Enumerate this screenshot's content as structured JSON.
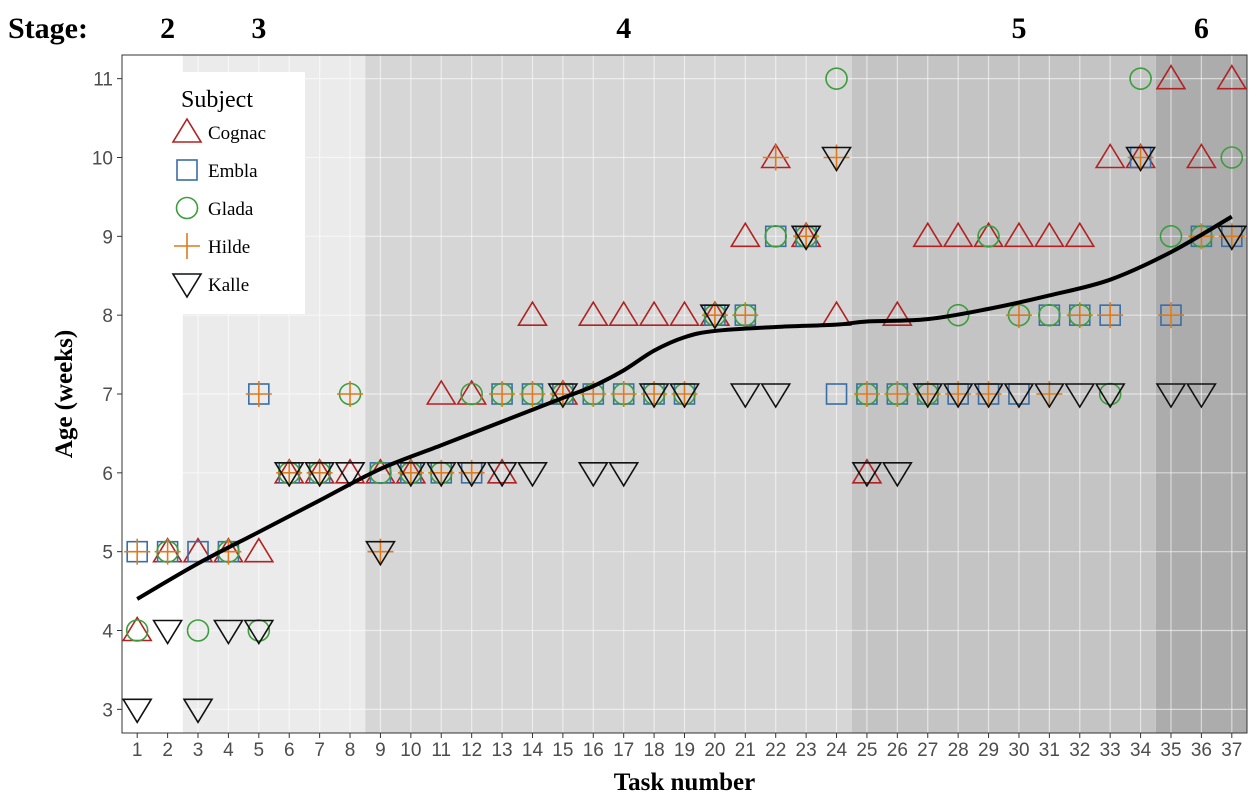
{
  "chart_data": {
    "type": "scatter",
    "title": "",
    "stage_label": "Stage:",
    "stages": [
      {
        "label": "2",
        "x_start": 0.5,
        "x_end": 2.5,
        "fill": "#ffffff"
      },
      {
        "label": "3",
        "x_start": 2.5,
        "x_end": 8.5,
        "fill": "#ebebeb"
      },
      {
        "label": "4",
        "x_start": 8.5,
        "x_end": 24.5,
        "fill": "#d6d6d6"
      },
      {
        "label": "5",
        "x_start": 24.5,
        "x_end": 34.5,
        "fill": "#c4c4c4"
      },
      {
        "label": "6",
        "x_start": 34.5,
        "x_end": 37.5,
        "fill": "#acacac"
      }
    ],
    "stage_label_x": [
      2,
      5,
      17,
      30,
      36
    ],
    "xlabel": "Task number",
    "ylabel": "Age (weeks)",
    "xlim": [
      0.5,
      37.5
    ],
    "ylim": [
      2.7,
      11.3
    ],
    "x_ticks": [
      1,
      2,
      3,
      4,
      5,
      6,
      7,
      8,
      9,
      10,
      11,
      12,
      13,
      14,
      15,
      16,
      17,
      18,
      19,
      20,
      21,
      22,
      23,
      24,
      25,
      26,
      27,
      28,
      29,
      30,
      31,
      32,
      33,
      34,
      35,
      36,
      37
    ],
    "y_ticks": [
      3,
      4,
      5,
      6,
      7,
      8,
      9,
      10,
      11
    ],
    "grid": true,
    "legend": {
      "title": "Subject",
      "position": "top-left"
    },
    "series": [
      {
        "name": "Cognac",
        "marker": "triangle-up",
        "color": "#b22222",
        "points": [
          [
            1,
            4
          ],
          [
            2,
            5
          ],
          [
            3,
            5
          ],
          [
            4,
            5
          ],
          [
            5,
            5
          ],
          [
            6,
            6
          ],
          [
            7,
            6
          ],
          [
            8,
            6
          ],
          [
            9,
            6
          ],
          [
            10,
            6
          ],
          [
            11,
            7
          ],
          [
            12,
            7
          ],
          [
            13,
            6
          ],
          [
            14,
            8
          ],
          [
            15,
            7
          ],
          [
            16,
            8
          ],
          [
            17,
            8
          ],
          [
            18,
            8
          ],
          [
            19,
            8
          ],
          [
            20,
            8
          ],
          [
            21,
            9
          ],
          [
            22,
            10
          ],
          [
            23,
            9
          ],
          [
            24,
            8
          ],
          [
            25,
            6
          ],
          [
            26,
            8
          ],
          [
            27,
            9
          ],
          [
            28,
            9
          ],
          [
            29,
            9
          ],
          [
            30,
            9
          ],
          [
            31,
            9
          ],
          [
            32,
            9
          ],
          [
            33,
            10
          ],
          [
            34,
            10
          ],
          [
            35,
            11
          ],
          [
            36,
            10
          ],
          [
            37,
            11
          ]
        ]
      },
      {
        "name": "Embla",
        "marker": "square",
        "color": "#3a6ea5",
        "points": [
          [
            1,
            5
          ],
          [
            2,
            5
          ],
          [
            3,
            5
          ],
          [
            4,
            5
          ],
          [
            5,
            7
          ],
          [
            6,
            6
          ],
          [
            7,
            6
          ],
          [
            9,
            6
          ],
          [
            10,
            6
          ],
          [
            11,
            6
          ],
          [
            12,
            6
          ],
          [
            13,
            7
          ],
          [
            14,
            7
          ],
          [
            15,
            7
          ],
          [
            16,
            7
          ],
          [
            17,
            7
          ],
          [
            18,
            7
          ],
          [
            19,
            7
          ],
          [
            20,
            8
          ],
          [
            21,
            8
          ],
          [
            22,
            9
          ],
          [
            23,
            9
          ],
          [
            24,
            7
          ],
          [
            25,
            7
          ],
          [
            26,
            7
          ],
          [
            27,
            7
          ],
          [
            28,
            7
          ],
          [
            29,
            7
          ],
          [
            30,
            7
          ],
          [
            31,
            8
          ],
          [
            32,
            8
          ],
          [
            33,
            8
          ],
          [
            34,
            10
          ],
          [
            35,
            8
          ],
          [
            36,
            9
          ],
          [
            37,
            9
          ]
        ]
      },
      {
        "name": "Glada",
        "marker": "circle",
        "color": "#3c9d3c",
        "points": [
          [
            1,
            4
          ],
          [
            2,
            5
          ],
          [
            3,
            4
          ],
          [
            4,
            5
          ],
          [
            5,
            4
          ],
          [
            6,
            6
          ],
          [
            7,
            6
          ],
          [
            8,
            7
          ],
          [
            9,
            6
          ],
          [
            10,
            6
          ],
          [
            11,
            6
          ],
          [
            12,
            7
          ],
          [
            13,
            7
          ],
          [
            14,
            7
          ],
          [
            15,
            7
          ],
          [
            16,
            7
          ],
          [
            17,
            7
          ],
          [
            18,
            7
          ],
          [
            19,
            7
          ],
          [
            20,
            8
          ],
          [
            21,
            8
          ],
          [
            22,
            9
          ],
          [
            23,
            9
          ],
          [
            24,
            11
          ],
          [
            25,
            7
          ],
          [
            26,
            7
          ],
          [
            27,
            7
          ],
          [
            28,
            8
          ],
          [
            29,
            9
          ],
          [
            30,
            8
          ],
          [
            31,
            8
          ],
          [
            32,
            8
          ],
          [
            33,
            7
          ],
          [
            34,
            11
          ],
          [
            35,
            9
          ],
          [
            36,
            9
          ],
          [
            37,
            10
          ]
        ]
      },
      {
        "name": "Hilde",
        "marker": "plus",
        "color": "#e07b1a",
        "points": [
          [
            1,
            5
          ],
          [
            2,
            5
          ],
          [
            4,
            5
          ],
          [
            5,
            7
          ],
          [
            6,
            6
          ],
          [
            7,
            6
          ],
          [
            8,
            7
          ],
          [
            9,
            5
          ],
          [
            10,
            6
          ],
          [
            11,
            6
          ],
          [
            12,
            6
          ],
          [
            13,
            7
          ],
          [
            14,
            7
          ],
          [
            15,
            7
          ],
          [
            16,
            7
          ],
          [
            17,
            7
          ],
          [
            18,
            7
          ],
          [
            19,
            7
          ],
          [
            20,
            8
          ],
          [
            21,
            8
          ],
          [
            22,
            10
          ],
          [
            23,
            9
          ],
          [
            24,
            10
          ],
          [
            25,
            7
          ],
          [
            26,
            7
          ],
          [
            27,
            7
          ],
          [
            28,
            7
          ],
          [
            29,
            7
          ],
          [
            30,
            8
          ],
          [
            31,
            7
          ],
          [
            32,
            8
          ],
          [
            33,
            8
          ],
          [
            34,
            10
          ],
          [
            35,
            8
          ],
          [
            36,
            9
          ],
          [
            37,
            9
          ]
        ]
      },
      {
        "name": "Kalle",
        "marker": "triangle-down",
        "color": "#111111",
        "points": [
          [
            1,
            3
          ],
          [
            2,
            4
          ],
          [
            3,
            3
          ],
          [
            4,
            4
          ],
          [
            5,
            4
          ],
          [
            6,
            6
          ],
          [
            7,
            6
          ],
          [
            8,
            6
          ],
          [
            9,
            5
          ],
          [
            10,
            6
          ],
          [
            11,
            6
          ],
          [
            12,
            6
          ],
          [
            13,
            6
          ],
          [
            14,
            6
          ],
          [
            15,
            7
          ],
          [
            16,
            6
          ],
          [
            17,
            6
          ],
          [
            18,
            7
          ],
          [
            19,
            7
          ],
          [
            20,
            8
          ],
          [
            21,
            7
          ],
          [
            22,
            7
          ],
          [
            23,
            9
          ],
          [
            24,
            10
          ],
          [
            25,
            6
          ],
          [
            26,
            6
          ],
          [
            27,
            7
          ],
          [
            28,
            7
          ],
          [
            29,
            7
          ],
          [
            30,
            7
          ],
          [
            31,
            7
          ],
          [
            32,
            7
          ],
          [
            33,
            7
          ],
          [
            34,
            10
          ],
          [
            35,
            7
          ],
          [
            36,
            7
          ],
          [
            37,
            9
          ]
        ]
      }
    ],
    "smooth_line": {
      "color": "#000000",
      "points": [
        [
          1,
          4.4
        ],
        [
          3,
          4.85
        ],
        [
          5,
          5.25
        ],
        [
          7,
          5.65
        ],
        [
          9,
          6.05
        ],
        [
          11,
          6.35
        ],
        [
          13,
          6.65
        ],
        [
          15,
          6.95
        ],
        [
          16,
          7.1
        ],
        [
          17,
          7.3
        ],
        [
          18,
          7.55
        ],
        [
          19,
          7.72
        ],
        [
          20,
          7.8
        ],
        [
          22,
          7.85
        ],
        [
          24,
          7.88
        ],
        [
          25,
          7.92
        ],
        [
          27,
          7.95
        ],
        [
          29,
          8.08
        ],
        [
          31,
          8.25
        ],
        [
          33,
          8.45
        ],
        [
          35,
          8.8
        ],
        [
          37,
          9.25
        ]
      ]
    }
  }
}
